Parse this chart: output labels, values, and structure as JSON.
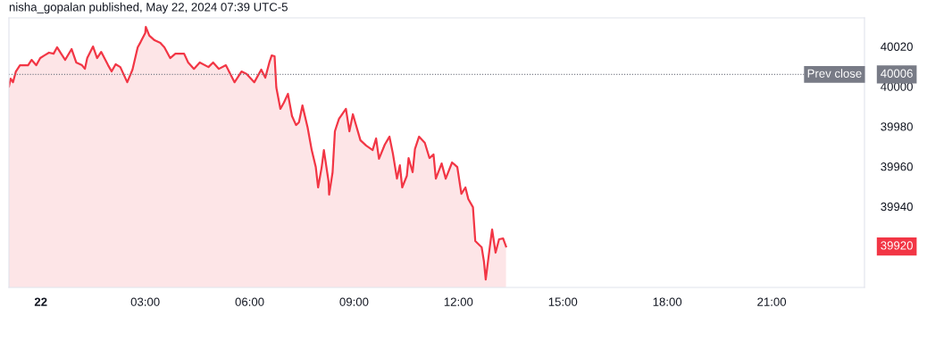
{
  "chart_data": {
    "type": "area",
    "title": "nisha_gopalan published, May 22, 2024 07:39 UTC-5",
    "x": [
      "2024-05-21T23:05",
      "2024-05-21T23:08",
      "2024-05-21T23:12",
      "2024-05-21T23:17",
      "2024-05-21T23:24",
      "2024-05-21T23:38",
      "2024-05-21T23:44",
      "2024-05-21T23:52",
      "2024-05-21T23:59",
      "2024-05-22T00:06",
      "2024-05-22T00:14",
      "2024-05-22T00:22",
      "2024-05-22T00:28",
      "2024-05-22T00:35",
      "2024-05-22T00:42",
      "2024-05-22T00:53",
      "2024-05-22T01:01",
      "2024-05-22T01:11",
      "2024-05-22T01:16",
      "2024-05-22T01:20",
      "2024-05-22T01:30",
      "2024-05-22T01:37",
      "2024-05-22T01:44",
      "2024-05-22T01:56",
      "2024-05-22T02:02",
      "2024-05-22T02:09",
      "2024-05-22T02:17",
      "2024-05-22T02:29",
      "2024-05-22T02:38",
      "2024-05-22T02:47",
      "2024-05-22T02:52",
      "2024-05-22T03:00",
      "2024-05-22T03:01",
      "2024-05-22T03:07",
      "2024-05-22T03:16",
      "2024-05-22T03:26",
      "2024-05-22T03:33",
      "2024-05-22T03:43",
      "2024-05-22T03:52",
      "2024-05-22T04:07",
      "2024-05-22T04:14",
      "2024-05-22T04:24",
      "2024-05-22T04:34",
      "2024-05-22T04:49",
      "2024-05-22T04:57",
      "2024-05-22T05:07",
      "2024-05-22T05:19",
      "2024-05-22T05:34",
      "2024-05-22T05:46",
      "2024-05-22T05:55",
      "2024-05-22T06:08",
      "2024-05-22T06:20",
      "2024-05-22T06:27",
      "2024-05-22T06:34",
      "2024-05-22T06:38",
      "2024-05-22T06:43",
      "2024-05-22T06:46",
      "2024-05-22T06:53",
      "2024-05-22T06:59",
      "2024-05-22T07:06",
      "2024-05-22T07:13",
      "2024-05-22T07:20",
      "2024-05-22T07:25",
      "2024-05-22T07:31",
      "2024-05-22T07:40",
      "2024-05-22T07:47",
      "2024-05-22T07:54",
      "2024-05-22T07:58",
      "2024-05-22T08:04",
      "2024-05-22T08:08",
      "2024-05-22T08:16",
      "2024-05-22T08:17",
      "2024-05-22T08:23",
      "2024-05-22T08:27",
      "2024-05-22T08:34",
      "2024-05-22T08:46",
      "2024-05-22T08:52",
      "2024-05-22T08:58",
      "2024-05-22T09:11",
      "2024-05-22T09:21",
      "2024-05-22T09:32",
      "2024-05-22T09:38",
      "2024-05-22T09:43",
      "2024-05-22T09:53",
      "2024-05-22T10:01",
      "2024-05-22T10:07",
      "2024-05-22T10:14",
      "2024-05-22T10:19",
      "2024-05-22T10:23",
      "2024-05-22T10:31",
      "2024-05-22T10:34",
      "2024-05-22T10:41",
      "2024-05-22T10:45",
      "2024-05-22T10:52",
      "2024-05-22T11:02",
      "2024-05-22T11:10",
      "2024-05-22T11:17",
      "2024-05-22T11:21",
      "2024-05-22T11:31",
      "2024-05-22T11:38",
      "2024-05-22T11:49",
      "2024-05-22T11:58",
      "2024-05-22T12:05",
      "2024-05-22T12:12",
      "2024-05-22T12:17",
      "2024-05-22T12:25",
      "2024-05-22T12:29",
      "2024-05-22T12:40",
      "2024-05-22T12:44",
      "2024-05-22T12:47",
      "2024-05-22T12:54",
      "2024-05-22T12:58",
      "2024-05-22T13:04",
      "2024-05-22T13:10",
      "2024-05-22T13:17",
      "2024-05-22T13:22"
    ],
    "series": [
      {
        "color": "#f23645",
        "values": [
          40000,
          40003.9,
          40002.1,
          40007.5,
          40010.6,
          40010.6,
          40013.3,
          40010.6,
          40014.2,
          40015.5,
          40016.9,
          40016.4,
          40019.6,
          40016.4,
          40013.3,
          40018.7,
          40012.0,
          40010.6,
          40008.8,
          40014.2,
          40020.0,
          40014.2,
          40017.3,
          40010.6,
          40007.5,
          40011.1,
          40009.7,
          40002.1,
          40008.4,
          40019.6,
          40022.2,
          40026.7,
          40029.8,
          40025.4,
          40023.1,
          40021.8,
          40019.6,
          40014.2,
          40016.4,
          40016.4,
          40012.0,
          40008.8,
          40012.0,
          40009.7,
          40012.0,
          40008.8,
          40010.6,
          40002.1,
          40007.5,
          40006.2,
          40002.1,
          40008.4,
          40004.4,
          40012.0,
          40015.5,
          40015.1,
          39999.5,
          39988.8,
          39991.9,
          39996.3,
          39985.2,
          39980.7,
          39982.1,
          39990.5,
          39979.4,
          39968.2,
          39959.7,
          39949.5,
          39959.3,
          39968.2,
          39952.6,
          39945.9,
          39957.1,
          39977.6,
          39983.8,
          39988.8,
          39977.6,
          39986.1,
          39973.1,
          39970.4,
          39968.2,
          39974.0,
          39963.8,
          39970.9,
          39974.9,
          39966.4,
          39953.9,
          39960.6,
          39949.5,
          39955.3,
          39964.2,
          39957.1,
          39968.7,
          39974.9,
          39971.8,
          39964.2,
          39966.0,
          39953.9,
          39961.5,
          39953.9,
          39962.0,
          39959.7,
          39946.3,
          39949.5,
          39943.7,
          39939.6,
          39922.7,
          39919.6,
          39912.4,
          39903.5,
          39919.6,
          39928.5,
          39916.9,
          39923.6,
          39924.0,
          39920
        ]
      }
    ],
    "xlim": [
      "2024-05-21T23:05",
      "2024-05-22T23:40"
    ],
    "ylim": [
      39899.5,
      40034.3
    ],
    "xticks": [
      {
        "value": "2024-05-22T00:00",
        "label": "22"
      },
      {
        "value": "2024-05-22T03:00",
        "label": "03:00"
      },
      {
        "value": "2024-05-22T06:00",
        "label": "06:00"
      },
      {
        "value": "2024-05-22T09:00",
        "label": "09:00"
      },
      {
        "value": "2024-05-22T12:00",
        "label": "12:00"
      },
      {
        "value": "2024-05-22T15:00",
        "label": "15:00"
      },
      {
        "value": "2024-05-22T18:00",
        "label": "18:00"
      },
      {
        "value": "2024-05-22T21:00",
        "label": "21:00"
      }
    ],
    "yticks": [
      39940,
      39960,
      39980,
      40000,
      40020
    ],
    "ref_lines": [
      {
        "axis": "y",
        "value": 40006,
        "label": "Prev close",
        "color": "#787b86",
        "line_style": "dotted"
      }
    ],
    "annotations": [
      "40006",
      "39920"
    ],
    "grid": false
  }
}
